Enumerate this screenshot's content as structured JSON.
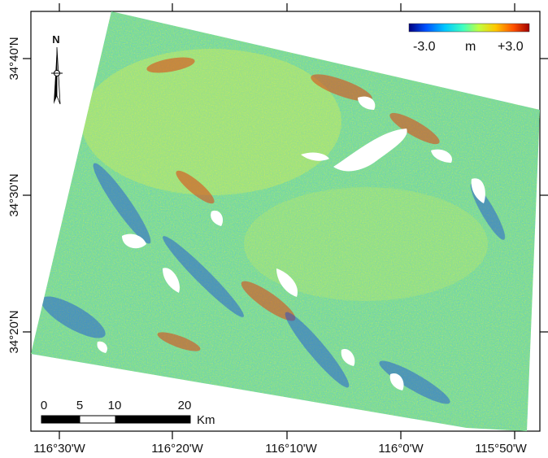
{
  "map": {
    "colorbar": {
      "min_label": "-3.0",
      "unit_label": "m",
      "max_label": "+3.0",
      "min_value": -3.0,
      "max_value": 3.0,
      "colors": [
        "#00007f",
        "#0050ff",
        "#00c8ff",
        "#40ffc0",
        "#c0ff40",
        "#ffc800",
        "#ff5000",
        "#a00000"
      ]
    },
    "north_arrow": {
      "label": "N"
    },
    "scale_bar": {
      "ticks": [
        "0",
        "5",
        "10",
        "20"
      ],
      "unit": "Km"
    },
    "lon_ticks": [
      "116°30'W",
      "116°20'W",
      "116°10'W",
      "116°0'W",
      "115°50'W"
    ],
    "lat_ticks": [
      "34°40'N",
      "34°30'N",
      "34°20'N"
    ],
    "colors": {
      "background": "#ffffff",
      "frame": "#000000",
      "dominant_fill": "#7fe08f"
    }
  }
}
